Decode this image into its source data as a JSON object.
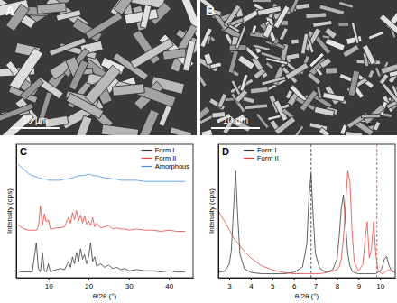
{
  "images": [
    {
      "label": "A",
      "scale_bar": "10 µm"
    },
    {
      "label": "B",
      "scale_bar": "10 µm"
    }
  ],
  "chart_data": [
    {
      "type": "line",
      "title": "C",
      "x_label": "θ/2θ (°)",
      "y_label": "Intensity (cps)",
      "x": [
        2.5,
        3,
        4,
        5,
        6,
        7,
        7.5,
        8,
        8.5,
        9,
        9.5,
        10,
        10.5,
        11,
        12,
        13,
        14,
        15,
        15.5,
        16,
        16.5,
        17,
        17.5,
        18,
        18.5,
        19,
        19.5,
        20,
        20.5,
        21,
        21.5,
        22,
        23,
        24,
        25,
        26,
        27,
        28,
        29,
        30,
        32,
        34,
        36,
        38,
        40,
        42,
        44
      ],
      "series": [
        {
          "name": "Form I",
          "color": "#3a3a3a",
          "values": [
            6,
            5,
            5,
            5,
            5,
            30,
            8,
            5,
            22,
            6,
            5,
            12,
            5,
            6,
            7,
            8,
            7,
            14,
            9,
            18,
            12,
            22,
            14,
            25,
            16,
            20,
            12,
            18,
            30,
            14,
            18,
            10,
            12,
            9,
            11,
            8,
            9,
            7,
            8,
            6,
            7,
            6,
            6,
            5,
            6,
            5,
            5
          ]
        },
        {
          "name": "Form II",
          "color": "#e8423f",
          "values": [
            46,
            44,
            42,
            41,
            41,
            41,
            44,
            62,
            45,
            55,
            48,
            50,
            42,
            42,
            43,
            43,
            44,
            52,
            47,
            56,
            50,
            58,
            49,
            54,
            47,
            53,
            46,
            49,
            45,
            52,
            44,
            47,
            43,
            44,
            45,
            42,
            43,
            42,
            42,
            41,
            42,
            41,
            41,
            40,
            41,
            40,
            40
          ]
        },
        {
          "name": "Amorphous",
          "color": "#4a90d9",
          "values": [
            98,
            96,
            93,
            90,
            88,
            87,
            86,
            86,
            85,
            85,
            85,
            84,
            84,
            84,
            84,
            84,
            85,
            85,
            86,
            86,
            87,
            87,
            88,
            88,
            88,
            88,
            89,
            89,
            89,
            88,
            88,
            88,
            87,
            86,
            86,
            85,
            85,
            84,
            84,
            84,
            84,
            83,
            83,
            83,
            83,
            83,
            83
          ]
        }
      ],
      "xlim": [
        2,
        46
      ],
      "xticks": [
        10,
        20,
        30,
        40
      ],
      "ylim": [
        0,
        115
      ],
      "yticks": [],
      "tick_labels": "x",
      "legend": "top-right"
    },
    {
      "type": "line",
      "title": "D",
      "x_label": "θ/2θ (°)",
      "y_label": "Intensity (cps)",
      "x": [
        2.5,
        2.8,
        3.0,
        3.1,
        3.2,
        3.3,
        3.4,
        3.5,
        3.7,
        4.0,
        4.5,
        5.0,
        5.5,
        6.0,
        6.4,
        6.6,
        6.7,
        6.8,
        6.9,
        7.0,
        7.2,
        7.5,
        7.8,
        8.0,
        8.1,
        8.2,
        8.3,
        8.4,
        8.5,
        8.6,
        8.7,
        8.8,
        9.0,
        9.2,
        9.3,
        9.4,
        9.5,
        9.6,
        9.7,
        9.8,
        9.9,
        10.0,
        10.1,
        10.2,
        10.3,
        10.4,
        10.5,
        10.7
      ],
      "series": [
        {
          "name": "Form I",
          "color": "#3a3a3a",
          "values": [
            4,
            5,
            10,
            20,
            50,
            80,
            45,
            18,
            7,
            4,
            3,
            3,
            3,
            4,
            8,
            25,
            60,
            78,
            45,
            18,
            7,
            4,
            6,
            14,
            30,
            52,
            62,
            40,
            18,
            9,
            5,
            4,
            3,
            3,
            3,
            3,
            3,
            3,
            3,
            3,
            4,
            5,
            8,
            14,
            16,
            10,
            6,
            4
          ]
        },
        {
          "name": "Form II",
          "color": "#e8423f",
          "values": [
            50,
            42,
            36,
            33,
            30,
            28,
            26,
            24,
            20,
            15,
            9,
            6,
            4,
            3,
            3,
            3,
            3,
            3,
            3,
            3,
            3,
            4,
            5,
            6,
            8,
            14,
            30,
            55,
            80,
            72,
            35,
            12,
            5,
            10,
            28,
            42,
            15,
            22,
            42,
            18,
            6,
            4,
            3,
            4,
            5,
            6,
            5,
            4
          ]
        }
      ],
      "reference_lines": [
        {
          "x": 6.8,
          "color": "#3a3a3a",
          "line_style": "dashed"
        },
        {
          "x": 9.85,
          "color": "#e8423f",
          "line_style": "dashed"
        }
      ],
      "xlim": [
        2.5,
        10.7
      ],
      "xticks": [
        3,
        4,
        5,
        6,
        7,
        8,
        9,
        10
      ],
      "ylim": [
        0,
        100
      ],
      "yticks": [],
      "tick_labels": "x",
      "legend": "top-left"
    }
  ]
}
